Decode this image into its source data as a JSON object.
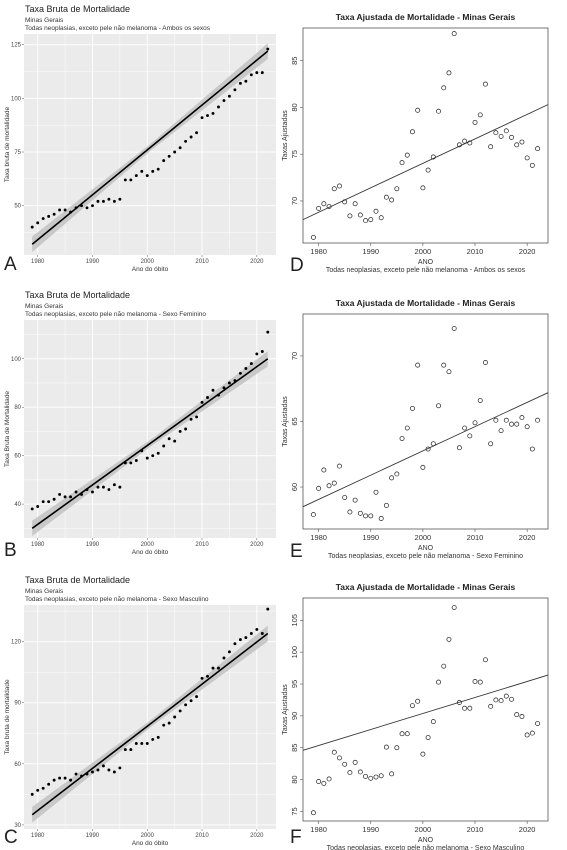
{
  "panel_labels": [
    "A",
    "B",
    "C",
    "D",
    "E",
    "F"
  ],
  "colors": {
    "gg_panel_bg": "#ebebeb",
    "gg_grid": "#ffffff",
    "ci_band": "#c4c4c4",
    "fit_line": "#000000",
    "point": "#000000"
  },
  "chart_data": [
    {
      "id": "A",
      "type": "scatter",
      "style": "ggplot",
      "title": "Taxa Bruta de Mortalidade",
      "subtitle": [
        "Minas Gerais",
        "Todas neoplasias, exceto pele não melanoma - Ambos os sexos"
      ],
      "xlabel": "Ano do óbito",
      "ylabel": "Taxa bruta de mortalidade",
      "xlim": [
        1977.5,
        2023.5
      ],
      "ylim": [
        27,
        130
      ],
      "xticks": [
        1980,
        1990,
        2000,
        2010,
        2020
      ],
      "yticks": [
        50,
        75,
        100,
        125
      ],
      "x": [
        1979,
        1980,
        1981,
        1982,
        1983,
        1984,
        1985,
        1986,
        1987,
        1988,
        1989,
        1990,
        1991,
        1992,
        1993,
        1994,
        1995,
        1996,
        1997,
        1998,
        1999,
        2000,
        2001,
        2002,
        2003,
        2004,
        2005,
        2006,
        2007,
        2008,
        2009,
        2010,
        2011,
        2012,
        2013,
        2014,
        2015,
        2016,
        2017,
        2018,
        2019,
        2020,
        2021,
        2022
      ],
      "y": [
        40,
        42,
        44,
        45,
        46,
        48,
        48,
        47,
        49,
        50,
        49,
        50,
        52,
        52,
        53,
        52,
        53,
        62,
        62,
        64,
        66,
        64,
        66,
        67,
        71,
        73,
        75,
        77,
        80,
        82,
        84,
        91,
        92,
        93,
        96,
        99,
        101,
        104,
        107,
        108,
        111,
        112,
        112,
        123
      ],
      "fit": {
        "x": [
          1979,
          2022
        ],
        "y": [
          32,
          122
        ]
      }
    },
    {
      "id": "B",
      "type": "scatter",
      "style": "ggplot",
      "title": "Taxa Bruta de Mortalidade",
      "subtitle": [
        "Minas Gerais",
        "Todas neoplasias, exceto pele não melanoma - Sexo Feminino"
      ],
      "xlabel": "Ano do óbito",
      "ylabel": "Taxa Bruta de Mortalidade",
      "xlim": [
        1977.5,
        2023.5
      ],
      "ylim": [
        26,
        116
      ],
      "xticks": [
        1980,
        1990,
        2000,
        2010,
        2020
      ],
      "yticks": [
        40,
        60,
        80,
        100
      ],
      "x": [
        1979,
        1980,
        1981,
        1982,
        1983,
        1984,
        1985,
        1986,
        1987,
        1988,
        1989,
        1990,
        1991,
        1992,
        1993,
        1994,
        1995,
        1996,
        1997,
        1998,
        1999,
        2000,
        2001,
        2002,
        2003,
        2004,
        2005,
        2006,
        2007,
        2008,
        2009,
        2010,
        2011,
        2012,
        2013,
        2014,
        2015,
        2016,
        2017,
        2018,
        2019,
        2020,
        2021,
        2022
      ],
      "y": [
        38,
        39,
        41,
        41,
        42,
        44,
        43,
        43,
        45,
        44,
        46,
        45,
        47,
        47,
        46,
        48,
        47,
        57,
        57,
        58,
        62,
        59,
        60,
        61,
        64,
        67,
        66,
        70,
        71,
        75,
        76,
        82,
        84,
        87,
        85,
        88,
        90,
        91,
        94,
        96,
        98,
        102,
        103,
        111
      ],
      "fit": {
        "x": [
          1979,
          2022
        ],
        "y": [
          30,
          100
        ]
      }
    },
    {
      "id": "C",
      "type": "scatter",
      "style": "ggplot",
      "title": "Taxa Bruta de Mortalidade",
      "subtitle": [
        "Minas Gerais",
        "Todas neoplasias, exceto pele não melanoma - Sexo Masculino"
      ],
      "xlabel": "Ano do óbito",
      "ylabel": "Taxa bruta de mortalidade",
      "xlim": [
        1977.5,
        2023.5
      ],
      "ylim": [
        28,
        138
      ],
      "xticks": [
        1980,
        1990,
        2000,
        2010,
        2020
      ],
      "yticks": [
        30,
        60,
        90,
        120
      ],
      "x": [
        1979,
        1980,
        1981,
        1982,
        1983,
        1984,
        1985,
        1986,
        1987,
        1988,
        1989,
        1990,
        1991,
        1992,
        1993,
        1994,
        1995,
        1996,
        1997,
        1998,
        1999,
        2000,
        2001,
        2002,
        2003,
        2004,
        2005,
        2006,
        2007,
        2008,
        2009,
        2010,
        2011,
        2012,
        2013,
        2014,
        2015,
        2016,
        2017,
        2018,
        2019,
        2020,
        2021,
        2022
      ],
      "y": [
        45,
        47,
        48,
        50,
        52,
        53,
        53,
        52,
        55,
        54,
        55,
        56,
        57,
        59,
        57,
        56,
        58,
        67,
        67,
        70,
        70,
        70,
        72,
        73,
        79,
        80,
        83,
        86,
        89,
        91,
        93,
        102,
        103,
        107,
        107,
        112,
        115,
        119,
        121,
        122,
        124,
        126,
        124,
        136
      ],
      "fit": {
        "x": [
          1979,
          2022
        ],
        "y": [
          35,
          124
        ]
      }
    },
    {
      "id": "D",
      "type": "scatter",
      "style": "base",
      "title": "Taxa Ajustada de Mortalidade - Minas Gerais",
      "xlabel": "ANO",
      "sublabel": "Todas neoplasias, exceto pele não melanoma - Ambos os sexos",
      "ylabel": "Taxas Ajustadas",
      "xlim": [
        1977,
        2024
      ],
      "ylim": [
        65.5,
        88.5
      ],
      "xticks": [
        1980,
        1990,
        2000,
        2010,
        2020
      ],
      "yticks": [
        70,
        75,
        80,
        85
      ],
      "x": [
        1979,
        1980,
        1981,
        1982,
        1983,
        1984,
        1985,
        1986,
        1987,
        1988,
        1989,
        1990,
        1991,
        1992,
        1993,
        1994,
        1995,
        1996,
        1997,
        1998,
        1999,
        2000,
        2001,
        2002,
        2003,
        2004,
        2005,
        2006,
        2007,
        2008,
        2009,
        2010,
        2011,
        2012,
        2013,
        2014,
        2015,
        2016,
        2017,
        2018,
        2019,
        2020,
        2021,
        2022
      ],
      "y": [
        66.1,
        69.2,
        69.7,
        69.4,
        71.3,
        71.6,
        69.9,
        68.4,
        69.7,
        68.5,
        67.9,
        68.0,
        68.9,
        68.2,
        70.4,
        70.1,
        71.3,
        74.1,
        74.9,
        77.4,
        79.7,
        71.4,
        73.3,
        74.7,
        79.6,
        82.1,
        83.7,
        87.9,
        76.0,
        76.4,
        76.2,
        78.4,
        79.2,
        82.5,
        75.8,
        77.3,
        76.9,
        77.5,
        76.8,
        76.0,
        76.3,
        74.6,
        73.8,
        75.6
      ],
      "fit": {
        "x": [
          1977,
          2024
        ],
        "y": [
          68.0,
          80.3
        ]
      }
    },
    {
      "id": "E",
      "type": "scatter",
      "style": "base",
      "title": "Taxa Ajustada de Mortalidade - Minas Gerais",
      "xlabel": "ANO",
      "sublabel": "Todas neoplasias, exceto pele não melanoma - Sexo Feminino",
      "ylabel": "Taxas Ajustadas",
      "xlim": [
        1977,
        2024
      ],
      "ylim": [
        56.8,
        73.2
      ],
      "xticks": [
        1980,
        1990,
        2000,
        2010,
        2020
      ],
      "yticks": [
        60,
        65,
        70
      ],
      "x": [
        1979,
        1980,
        1981,
        1982,
        1983,
        1984,
        1985,
        1986,
        1987,
        1988,
        1989,
        1990,
        1991,
        1992,
        1993,
        1994,
        1995,
        1996,
        1997,
        1998,
        1999,
        2000,
        2001,
        2002,
        2003,
        2004,
        2005,
        2006,
        2007,
        2008,
        2009,
        2010,
        2011,
        2012,
        2013,
        2014,
        2015,
        2016,
        2017,
        2018,
        2019,
        2020,
        2021,
        2022
      ],
      "y": [
        57.9,
        59.9,
        61.3,
        60.1,
        60.3,
        61.6,
        59.2,
        58.1,
        59.0,
        58.0,
        57.8,
        57.8,
        59.6,
        57.6,
        58.6,
        60.7,
        61.0,
        63.7,
        64.5,
        66.0,
        69.3,
        61.5,
        62.9,
        63.3,
        66.2,
        69.3,
        68.8,
        72.1,
        63.0,
        64.5,
        63.9,
        64.9,
        66.6,
        69.5,
        63.3,
        65.1,
        64.3,
        65.1,
        64.8,
        64.8,
        65.3,
        64.6,
        62.9,
        65.1
      ],
      "fit": {
        "x": [
          1977,
          2024
        ],
        "y": [
          58.5,
          67.2
        ]
      }
    },
    {
      "id": "F",
      "type": "scatter",
      "style": "base",
      "title": "Taxa Ajustada de Mortalidade - Minas Gerais",
      "xlabel": "ANO",
      "sublabel": "Todas neoplasias, exceto pele não melanoma - Sexo Masculino",
      "ylabel": "Taxas Ajustadas",
      "xlim": [
        1977,
        2024
      ],
      "ylim": [
        73.5,
        108.5
      ],
      "xticks": [
        1980,
        1990,
        2000,
        2010,
        2020
      ],
      "yticks": [
        75,
        80,
        85,
        90,
        95,
        100,
        105
      ],
      "x": [
        1979,
        1980,
        1981,
        1982,
        1983,
        1984,
        1985,
        1986,
        1987,
        1988,
        1989,
        1990,
        1991,
        1992,
        1993,
        1994,
        1995,
        1996,
        1997,
        1998,
        1999,
        2000,
        2001,
        2002,
        2003,
        2004,
        2005,
        2006,
        2007,
        2008,
        2009,
        2010,
        2011,
        2012,
        2013,
        2014,
        2015,
        2016,
        2017,
        2018,
        2019,
        2020,
        2021,
        2022
      ],
      "y": [
        74.8,
        79.7,
        79.4,
        80.1,
        84.3,
        83.4,
        82.4,
        81.1,
        82.7,
        81.2,
        80.5,
        80.2,
        80.4,
        80.6,
        85.1,
        80.9,
        85.0,
        87.2,
        87.2,
        91.6,
        92.3,
        84.0,
        86.6,
        89.1,
        95.3,
        97.8,
        102.0,
        107.0,
        92.1,
        91.2,
        91.2,
        95.4,
        95.3,
        98.8,
        91.5,
        92.5,
        92.4,
        93.1,
        92.6,
        90.2,
        89.9,
        87.0,
        87.3,
        88.8
      ],
      "fit": {
        "x": [
          1977,
          2024
        ],
        "y": [
          84.6,
          96.4
        ]
      }
    }
  ]
}
